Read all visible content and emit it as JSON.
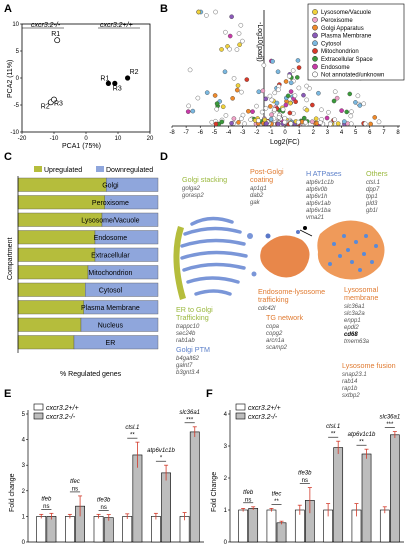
{
  "panels": {
    "A": "A",
    "B": "B",
    "C": "C",
    "D": "D",
    "E": "E",
    "F": "F"
  },
  "colors": {
    "upregulated": "#b5bd3c",
    "downregulated": "#8fa6dc",
    "golgi_green": "#9ab83c",
    "orange": "#e07a30",
    "blue": "#5b7fc9",
    "gene_grey": "#555555",
    "error_red": "#d23a2a",
    "bar_grey": "#bdbdbd"
  },
  "panel_a": {
    "label_minus": "cxcr3.2-/-",
    "label_plus": "cxcr3.2+/+",
    "xlabel": "PCA1 (75%)",
    "ylabel": "PCA2 (11%)",
    "xticks": [
      "-20",
      "-10",
      "0",
      "10",
      "20"
    ],
    "yticks": [
      "-10",
      "-5",
      "0",
      "5",
      "10"
    ],
    "samples_minus": [
      {
        "label": "R1",
        "x": -9,
        "y": 7
      },
      {
        "label": "R2",
        "x": -11,
        "y": -4.5
      },
      {
        "label": "R3",
        "x": -10,
        "y": -4
      }
    ],
    "samples_plus": [
      {
        "label": "R1",
        "x": 7,
        "y": -1
      },
      {
        "label": "R3",
        "x": 9,
        "y": -1
      },
      {
        "label": "R2",
        "x": 13,
        "y": 0
      }
    ]
  },
  "panel_b": {
    "ylabel": "-Log10(padj)",
    "xlabel": "Log2(FC)",
    "xticks": [
      "-8",
      "-7",
      "-6",
      "-5",
      "-4",
      "-3",
      "-2",
      "-1",
      "0",
      "1",
      "2",
      "3",
      "4",
      "5",
      "6",
      "7",
      "8"
    ],
    "legend": [
      {
        "label": "Lysosome/Vacuole",
        "color": "#f0d23c"
      },
      {
        "label": "Peroxisome",
        "color": "#f0a3c8"
      },
      {
        "label": "Golgi Apparatus",
        "color": "#f08a2a"
      },
      {
        "label": "Plasma Membrane",
        "color": "#8a5ab8"
      },
      {
        "label": "Cytosol",
        "color": "#7ab8e0"
      },
      {
        "label": "Mitochondrion",
        "color": "#d83a2a"
      },
      {
        "label": "Extracellular Space",
        "color": "#3a9a3a"
      },
      {
        "label": "Endosome",
        "color": "#c83aa8"
      },
      {
        "label": "Not annotated/unknown",
        "color": "#ffffff"
      }
    ]
  },
  "panel_c": {
    "legend_up": "Upregulated",
    "legend_down": "Downregulated",
    "ylabel": "Compartment",
    "xlabel": "% Regulated genes",
    "categories": [
      "Golgi",
      "Peroxisome",
      "Lysosome/Vacuole",
      "Endosome",
      "Extracellular",
      "Mitochondrion",
      "Cytosol",
      "Plasma Membrane",
      "Nucleus",
      "ER"
    ],
    "upregulated_pct": [
      63,
      62,
      60,
      55,
      55,
      50,
      48,
      47,
      45,
      40
    ]
  },
  "panel_d": {
    "golgi_stacking": {
      "title": "Golgi stacking",
      "genes": [
        "golga2",
        "gorasp2"
      ]
    },
    "post_golgi": {
      "title": "Post-Golgi coating",
      "genes": [
        "ap1g1",
        "dab2",
        "gak"
      ]
    },
    "h_atpases": {
      "title": "H ATPases",
      "genes": [
        "atp6v1c1b",
        "atp6v0b",
        "atp6v1h",
        "atp6v1ab",
        "atp6v1ba",
        "vma21"
      ]
    },
    "others": {
      "title": "Others",
      "genes": [
        "ctsl.1",
        "dpp7",
        "tpp1",
        "pld3",
        "gb1l"
      ]
    },
    "er_golgi": {
      "title": "ER to Golgi Trafficking",
      "genes": [
        "trappc10",
        "sec24b",
        "rab1ab"
      ]
    },
    "golgi_ptm": {
      "title": "Golgi PTM",
      "genes": [
        "b4galt62",
        "galnt7",
        "b3gnt3.4"
      ]
    },
    "endo_lyso": {
      "title": "Endosome-lysosome trafficking",
      "genes": [
        "cdc42l"
      ]
    },
    "tg_network": {
      "title": "TG network",
      "genes": [
        "copa",
        "copg2",
        "arcn1a",
        "scamp2"
      ]
    },
    "lyso_membrane": {
      "title": "Lysosomal membrane",
      "genes": [
        "slc36a1",
        "slc3a2a",
        "enpp1",
        "epdl2",
        "cd68",
        "tmem63a"
      ]
    },
    "lyso_fusion": {
      "title": "Lysosome fusion",
      "genes": [
        "snap23.1",
        "rab14",
        "rap1b",
        "sxtbp2"
      ]
    }
  },
  "panel_e": {
    "legend": [
      "cxcr3.2+/+",
      "cxcr3.2-/-"
    ],
    "ylabel": "Fold change",
    "yticks": [
      "0",
      "1",
      "2",
      "3",
      "4",
      "5"
    ],
    "ymax": 5,
    "genes": [
      {
        "name": "tfeb",
        "wt": 1.0,
        "ko": 1.0,
        "wt_err": 0.08,
        "ko_err": 0.12,
        "sig": "ns"
      },
      {
        "name": "tfec",
        "wt": 1.0,
        "ko": 1.4,
        "wt_err": 0.08,
        "ko_err": 0.4,
        "sig": "ns"
      },
      {
        "name": "tfe3b",
        "wt": 1.0,
        "ko": 0.95,
        "wt_err": 0.08,
        "ko_err": 0.12,
        "sig": "ns"
      },
      {
        "name": "ctsl.1",
        "wt": 1.0,
        "ko": 3.4,
        "wt_err": 0.1,
        "ko_err": 0.5,
        "sig": "**"
      },
      {
        "name": "atp6v1c1b",
        "wt": 1.0,
        "ko": 2.7,
        "wt_err": 0.12,
        "ko_err": 0.3,
        "sig": "*"
      },
      {
        "name": "slc36a1",
        "wt": 1.0,
        "ko": 4.3,
        "wt_err": 0.15,
        "ko_err": 0.2,
        "sig": "***"
      }
    ]
  },
  "panel_f": {
    "legend": [
      "cxcr3.2+/+",
      "cxcr3.2-/-"
    ],
    "ylabel": "Fold Change",
    "yticks": [
      "0",
      "1",
      "2",
      "3",
      "4"
    ],
    "ymax": 4,
    "genes": [
      {
        "name": "tfeb",
        "wt": 1.0,
        "ko": 1.05,
        "wt_err": 0.05,
        "ko_err": 0.05,
        "sig": "ns"
      },
      {
        "name": "tfec",
        "wt": 1.0,
        "ko": 0.6,
        "wt_err": 0.05,
        "ko_err": 0.05,
        "sig": "**"
      },
      {
        "name": "tfe3b",
        "wt": 1.0,
        "ko": 1.3,
        "wt_err": 0.15,
        "ko_err": 0.4,
        "sig": "ns"
      },
      {
        "name": "ctsl.1",
        "wt": 1.0,
        "ko": 2.95,
        "wt_err": 0.2,
        "ko_err": 0.2,
        "sig": "**"
      },
      {
        "name": "atp6v1c1b",
        "wt": 1.0,
        "ko": 2.75,
        "wt_err": 0.2,
        "ko_err": 0.15,
        "sig": "**"
      },
      {
        "name": "slc36a1",
        "wt": 1.0,
        "ko": 3.35,
        "wt_err": 0.1,
        "ko_err": 0.1,
        "sig": "***"
      }
    ]
  }
}
